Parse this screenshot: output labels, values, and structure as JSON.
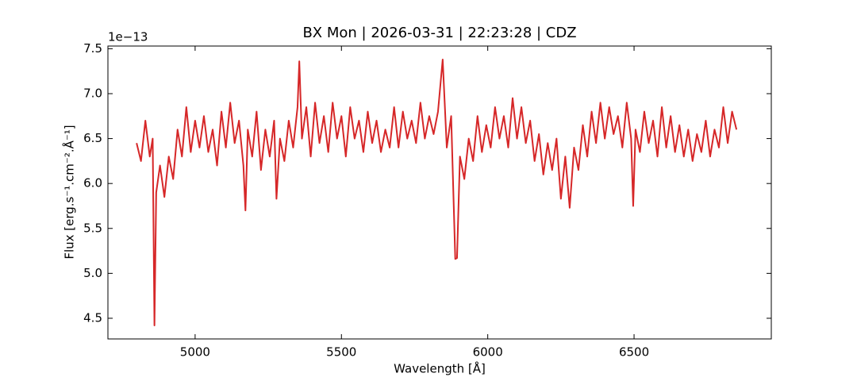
{
  "chart_data": {
    "type": "line",
    "title": "BX Mon | 2026-03-31 | 22:23:28 | CDZ",
    "x_label": "Wavelength [Å]",
    "y_label": "Flux [erg.s⁻¹.cm⁻².Å⁻¹]",
    "y_offset_label": "1e−13",
    "color": "#d62728",
    "xlim": [
      4702,
      6969
    ],
    "ylim": [
      4.27,
      7.53
    ],
    "xticks": [
      5000,
      5500,
      6000,
      6500
    ],
    "yticks": [
      4.5,
      {
        "value": 5,
        "label": "5.0"
      },
      5.5,
      {
        "value": 6,
        "label": "6.0"
      },
      6.5,
      {
        "value": 7,
        "label": "7.0"
      },
      7.5
    ],
    "grid": false,
    "x": [
      4800,
      4815,
      4830,
      4845,
      4855,
      4861,
      4867,
      4880,
      4895,
      4910,
      4925,
      4940,
      4955,
      4970,
      4985,
      5000,
      5015,
      5030,
      5045,
      5060,
      5075,
      5090,
      5105,
      5120,
      5135,
      5150,
      5165,
      5172,
      5180,
      5195,
      5210,
      5225,
      5240,
      5255,
      5270,
      5278,
      5290,
      5305,
      5320,
      5335,
      5350,
      5356,
      5365,
      5380,
      5395,
      5410,
      5425,
      5440,
      5455,
      5470,
      5485,
      5500,
      5515,
      5530,
      5545,
      5560,
      5575,
      5590,
      5605,
      5620,
      5635,
      5650,
      5665,
      5680,
      5695,
      5710,
      5725,
      5740,
      5755,
      5770,
      5785,
      5800,
      5815,
      5830,
      5846,
      5860,
      5875,
      5889,
      5895,
      5905,
      5920,
      5935,
      5950,
      5965,
      5980,
      5995,
      6010,
      6025,
      6040,
      6055,
      6070,
      6085,
      6100,
      6115,
      6130,
      6145,
      6160,
      6175,
      6190,
      6205,
      6220,
      6235,
      6250,
      6265,
      6280,
      6295,
      6310,
      6325,
      6340,
      6355,
      6370,
      6385,
      6400,
      6415,
      6430,
      6445,
      6460,
      6475,
      6490,
      6497,
      6505,
      6520,
      6535,
      6550,
      6565,
      6580,
      6595,
      6610,
      6625,
      6640,
      6655,
      6670,
      6685,
      6700,
      6715,
      6730,
      6745,
      6760,
      6775,
      6790,
      6805,
      6820,
      6835,
      6850
    ],
    "values": [
      6.45,
      6.25,
      6.7,
      6.3,
      6.5,
      4.42,
      5.9,
      6.2,
      5.85,
      6.3,
      6.05,
      6.6,
      6.3,
      6.85,
      6.35,
      6.7,
      6.4,
      6.75,
      6.35,
      6.6,
      6.2,
      6.8,
      6.4,
      6.9,
      6.45,
      6.7,
      6.2,
      5.7,
      6.6,
      6.3,
      6.8,
      6.15,
      6.6,
      6.3,
      6.7,
      5.83,
      6.5,
      6.25,
      6.7,
      6.4,
      6.85,
      7.36,
      6.5,
      6.85,
      6.3,
      6.9,
      6.45,
      6.75,
      6.35,
      6.9,
      6.5,
      6.75,
      6.3,
      6.85,
      6.5,
      6.7,
      6.35,
      6.8,
      6.45,
      6.7,
      6.35,
      6.6,
      6.4,
      6.85,
      6.4,
      6.8,
      6.5,
      6.7,
      6.45,
      6.9,
      6.5,
      6.75,
      6.55,
      6.8,
      7.38,
      6.4,
      6.75,
      5.16,
      5.17,
      6.3,
      6.05,
      6.5,
      6.25,
      6.75,
      6.35,
      6.65,
      6.4,
      6.85,
      6.5,
      6.75,
      6.4,
      6.95,
      6.5,
      6.85,
      6.45,
      6.7,
      6.25,
      6.55,
      6.1,
      6.45,
      6.15,
      6.5,
      5.83,
      6.3,
      5.73,
      6.4,
      6.15,
      6.65,
      6.3,
      6.8,
      6.45,
      6.9,
      6.5,
      6.85,
      6.55,
      6.75,
      6.4,
      6.9,
      6.5,
      5.75,
      6.6,
      6.35,
      6.8,
      6.45,
      6.7,
      6.3,
      6.85,
      6.4,
      6.75,
      6.35,
      6.65,
      6.3,
      6.6,
      6.25,
      6.55,
      6.35,
      6.7,
      6.3,
      6.6,
      6.4,
      6.85,
      6.45,
      6.8,
      6.6
    ]
  }
}
